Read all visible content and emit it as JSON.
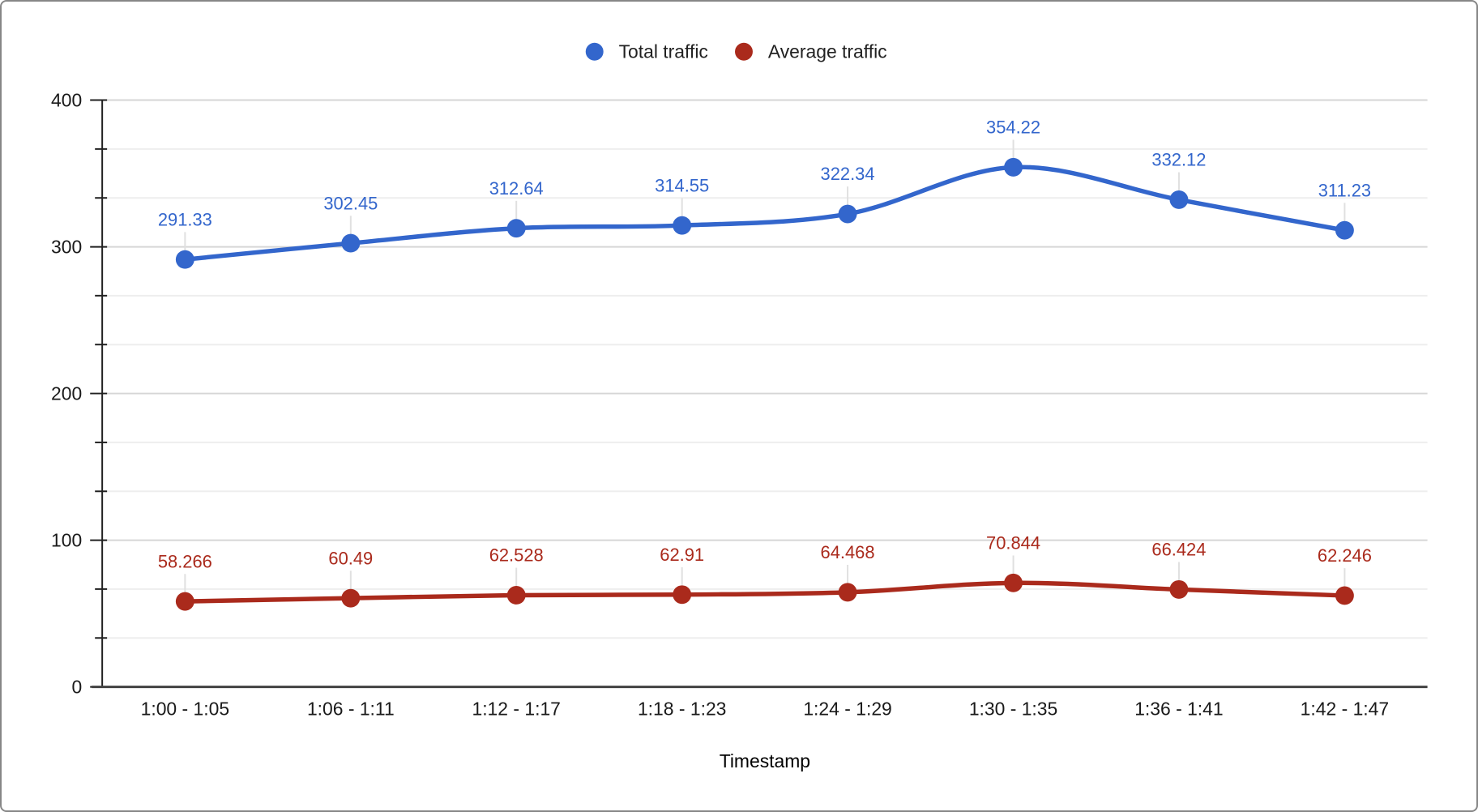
{
  "chart_data": {
    "type": "line",
    "title": "",
    "xlabel": "Timestamp",
    "ylabel": "",
    "categories": [
      "1:00 - 1:05",
      "1:06 - 1:11",
      "1:12 - 1:17",
      "1:18 - 1:23",
      "1:24 - 1:29",
      "1:30 - 1:35",
      "1:36 - 1:41",
      "1:42 - 1:47"
    ],
    "series": [
      {
        "name": "Total traffic",
        "color": "#3366cc",
        "values": [
          291.33,
          302.45,
          312.64,
          314.55,
          322.34,
          354.22,
          332.12,
          311.23
        ]
      },
      {
        "name": "Average traffic",
        "color": "#aa2a1c",
        "values": [
          58.266,
          60.49,
          62.528,
          62.91,
          64.468,
          70.844,
          66.424,
          62.246
        ]
      }
    ],
    "ylim": [
      0,
      400
    ],
    "yticks": [
      0,
      100,
      200,
      300,
      400
    ],
    "minor_divisions": 3,
    "grid": true,
    "smooth": true,
    "point_labels": true,
    "legend_position": "top"
  },
  "style": {
    "background": "#ffffff",
    "border_color": "#878787",
    "major_grid_color": "#d6d6d6",
    "minor_grid_color": "#eeeeee",
    "y_axis_color": "#212121",
    "x_axis_color": "#424242",
    "tick_label_color": "#1a1a1a",
    "legend_text_color": "#212121",
    "axis_title_color": "#000000",
    "leader_line_color": "#e0e0e0"
  }
}
